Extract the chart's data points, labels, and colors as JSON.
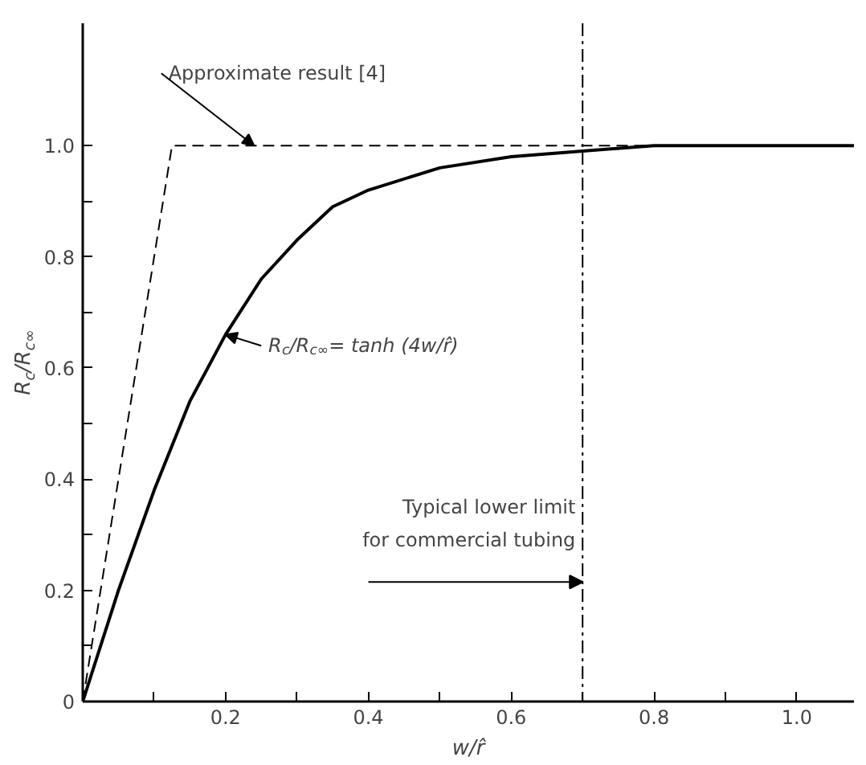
{
  "chart_data": {
    "type": "line",
    "xlabel": "w/r̂",
    "ylabel": "R$_{c}$/R$_{c∞}$",
    "xlim": [
      0,
      1.08
    ],
    "ylim": [
      0,
      1.22
    ],
    "xticks": [
      {
        "value": 0,
        "label": null
      },
      {
        "value": 0.1,
        "label": null
      },
      {
        "value": 0.2,
        "label": "0.2"
      },
      {
        "value": 0.3,
        "label": null
      },
      {
        "value": 0.4,
        "label": "0.4"
      },
      {
        "value": 0.5,
        "label": null
      },
      {
        "value": 0.6,
        "label": "0.6"
      },
      {
        "value": 0.7,
        "label": null
      },
      {
        "value": 0.8,
        "label": "0.8"
      },
      {
        "value": 0.9,
        "label": null
      },
      {
        "value": 1.0,
        "label": "1.0"
      }
    ],
    "yticks": [
      {
        "value": 0,
        "label": "0"
      },
      {
        "value": 0.1,
        "label": null
      },
      {
        "value": 0.2,
        "label": "0.2"
      },
      {
        "value": 0.3,
        "label": null
      },
      {
        "value": 0.4,
        "label": "0.4"
      },
      {
        "value": 0.5,
        "label": null
      },
      {
        "value": 0.6,
        "label": "0.6"
      },
      {
        "value": 0.7,
        "label": null
      },
      {
        "value": 0.8,
        "label": "0.8"
      },
      {
        "value": 0.9,
        "label": null
      },
      {
        "value": 1.0,
        "label": "1.0"
      }
    ],
    "grid": false,
    "marker": "none",
    "series": [
      {
        "color": "#000000",
        "line_style": "solid",
        "x": [
          0,
          0.05,
          0.1,
          0.15,
          0.2,
          0.25,
          0.3,
          0.35,
          0.4,
          0.5,
          0.6,
          0.7,
          0.8,
          0.9,
          1.0,
          1.08
        ],
        "values": [
          0,
          0.2,
          0.38,
          0.54,
          0.66,
          0.76,
          0.83,
          0.89,
          0.92,
          0.96,
          0.98,
          0.99,
          1.0,
          1.0,
          1.0,
          1.0
        ]
      },
      {
        "color": "#000000",
        "line_style": "dashed",
        "x": [
          0,
          0.125,
          1.08
        ],
        "values": [
          0,
          1.0,
          1.0
        ]
      }
    ],
    "ref_lines": [
      {
        "axis": "x",
        "value": 0.7,
        "label": "Typical lower limit\nfor commercial tubing",
        "line_style": "dashdot",
        "color": "#000000"
      }
    ],
    "annotations": [
      {
        "text": "Approximate result [4]",
        "x": 0.24,
        "y": 1.0
      },
      {
        "text": "R$_{c}$/R$_{c∞}$= tanh (4w/r̂)",
        "x": 0.2,
        "y": 0.66
      }
    ]
  }
}
